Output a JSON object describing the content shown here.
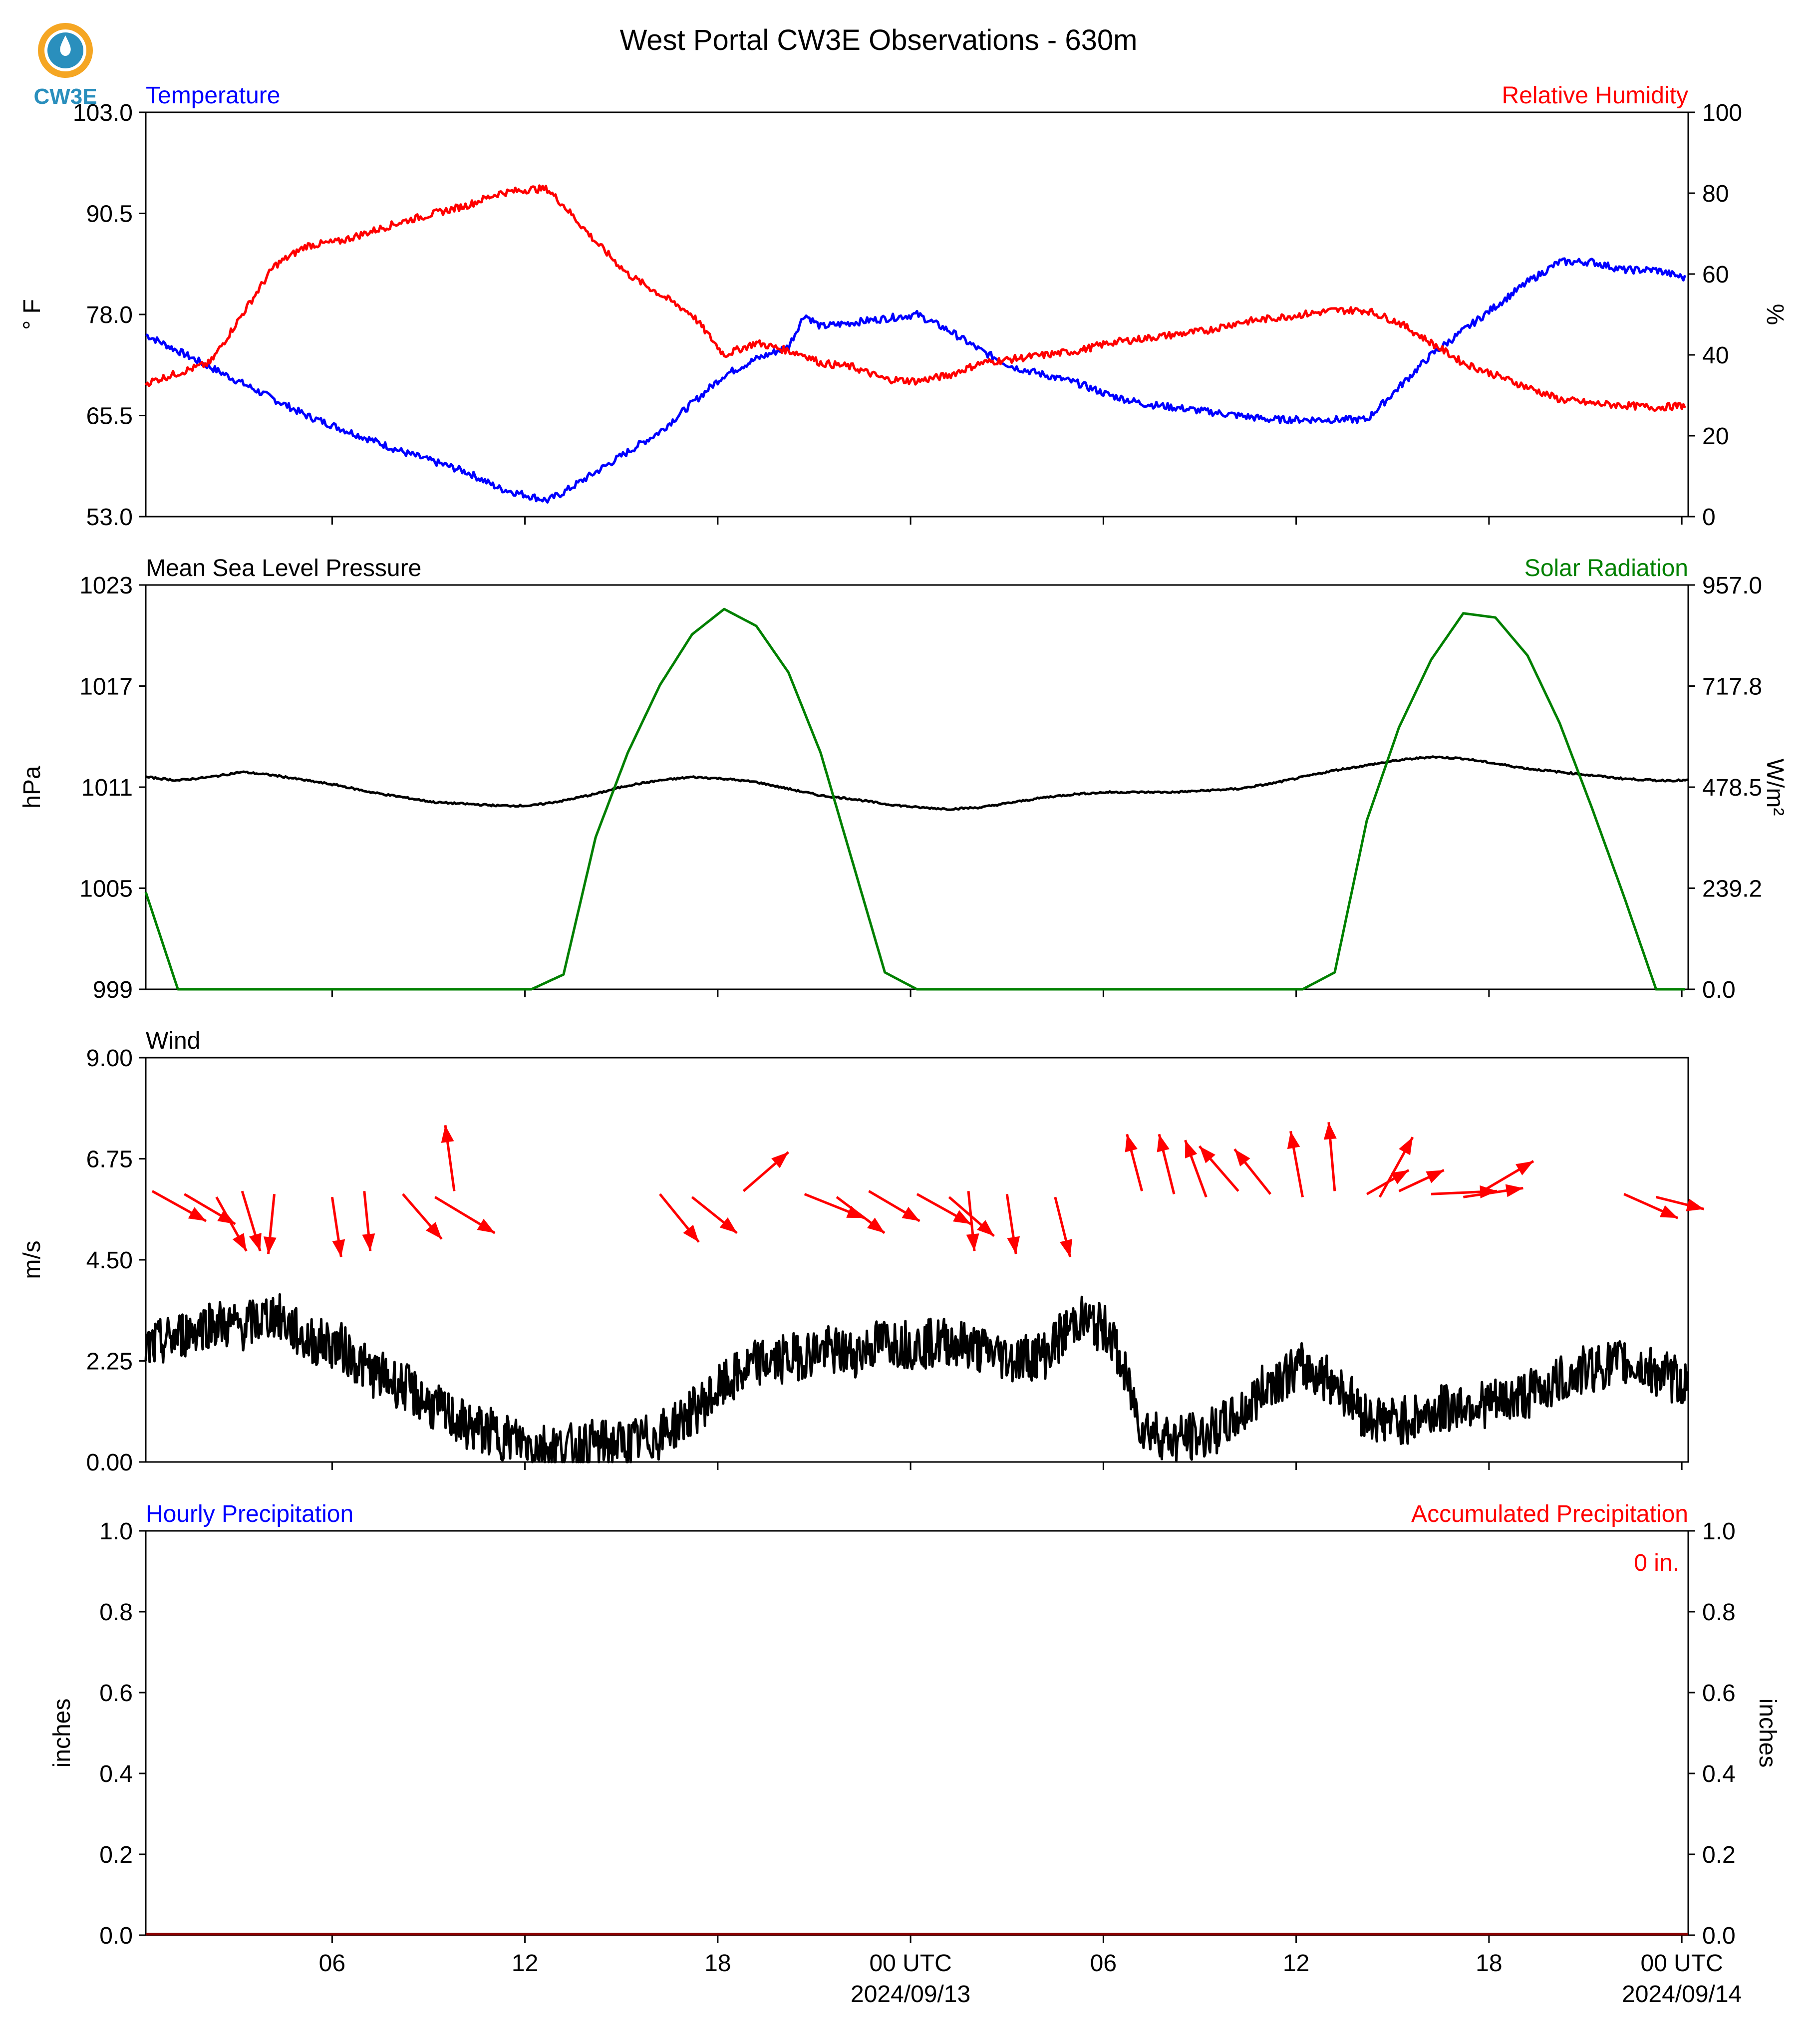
{
  "logo": {
    "text": "CW3E"
  },
  "title": "West Portal CW3E Observations - 630m",
  "colors": {
    "temperature": "#0000ff",
    "humidity": "#ff0000",
    "pressure": "#000000",
    "solar": "#008000",
    "wind": "#000000",
    "arrows": "#ff0000",
    "precip_accum": "#ff0000",
    "precip_hourly": "#0000ff",
    "logo_orange": "#f5a623",
    "logo_blue": "#2a8fbd"
  },
  "x_axis": {
    "tick_labels": [
      "06",
      "12",
      "18",
      "00 UTC",
      "06",
      "12",
      "18",
      "00 UTC"
    ],
    "date_labels": [
      "2024/09/13",
      "2024/09/14"
    ]
  },
  "chart_data": [
    {
      "type": "line",
      "panel": "temperature_humidity",
      "left_title": "Temperature",
      "right_title": "Relative Humidity",
      "left_ylabel": "° F",
      "right_ylabel": "%",
      "left_ylim": [
        53.0,
        103.0
      ],
      "right_ylim": [
        0,
        100
      ],
      "left_ticks": [
        "103.0",
        "90.5",
        "78.0",
        "65.5",
        "53.0"
      ],
      "right_ticks": [
        "100",
        "80",
        "60",
        "40",
        "20",
        "0"
      ],
      "x_hours": [
        0,
        2,
        4,
        5,
        6,
        8,
        10,
        11,
        12,
        12.5,
        13,
        14,
        15,
        16,
        17,
        18,
        19,
        20,
        20.5,
        21,
        22,
        23,
        24,
        25,
        26,
        27,
        28,
        29,
        30,
        31,
        32,
        33,
        34,
        35,
        36,
        37,
        38,
        39,
        40,
        41,
        42,
        43,
        44,
        45,
        46,
        47,
        47.9
      ],
      "series": [
        {
          "name": "Temperature",
          "values": [
            75.5,
            71.5,
            67.5,
            65.5,
            64.0,
            61.0,
            58.5,
            56.5,
            55.5,
            55.0,
            56.0,
            58.5,
            61.0,
            63.5,
            67.0,
            70.5,
            72.5,
            74.0,
            78.0,
            76.5,
            77.0,
            77.5,
            78.0,
            76.0,
            73.5,
            71.5,
            70.5,
            69.5,
            68.0,
            67.0,
            66.5,
            66.0,
            65.5,
            65.0,
            65.0,
            65.0,
            65.0,
            69.0,
            73.0,
            76.0,
            79.0,
            82.0,
            84.5,
            84.5,
            83.5,
            83.5,
            82.5
          ]
        },
        {
          "name": "Relative Humidity",
          "values": [
            33.0,
            38.0,
            62.0,
            67.0,
            68.0,
            73.0,
            77.0,
            80.0,
            81.0,
            81.0,
            77.0,
            68.0,
            60.0,
            55.0,
            50.0,
            40.0,
            43.0,
            41.0,
            40.0,
            38.0,
            37.0,
            34.0,
            33.5,
            35.0,
            38.0,
            39.0,
            40.0,
            41.0,
            43.0,
            44.0,
            45.0,
            46.0,
            48.0,
            49.0,
            50.0,
            51.0,
            51.0,
            48.0,
            43.0,
            38.0,
            35.0,
            32.0,
            29.0,
            28.0,
            27.5,
            27.0,
            27.5
          ]
        }
      ]
    },
    {
      "type": "line",
      "panel": "pressure_solar",
      "left_title": "Mean Sea Level Pressure",
      "right_title": "Solar Radiation",
      "left_ylabel": "hPa",
      "right_ylabel": "W/m²",
      "left_ylim": [
        999,
        1023
      ],
      "right_ylim": [
        0.0,
        957.0
      ],
      "left_ticks": [
        "1023",
        "1017",
        "1011",
        "1005",
        "999"
      ],
      "right_ticks": [
        "957.0",
        "717.8",
        "478.5",
        "239.2",
        "0.0"
      ],
      "x_hours": [
        0,
        1,
        2,
        3,
        4,
        5,
        6,
        7,
        8,
        9,
        10,
        11,
        12,
        13,
        14,
        15,
        16,
        17,
        18,
        19,
        20,
        21,
        22,
        23,
        24,
        25,
        26,
        27,
        28,
        29,
        30,
        31,
        32,
        33,
        34,
        35,
        36,
        37,
        38,
        39,
        40,
        41,
        42,
        43,
        44,
        45,
        46,
        47,
        48
      ],
      "series": [
        {
          "name": "Mean Sea Level Pressure",
          "values": [
            1011.6,
            1011.4,
            1011.6,
            1011.9,
            1011.7,
            1011.4,
            1011.1,
            1010.7,
            1010.4,
            1010.1,
            1010.0,
            1009.9,
            1009.9,
            1010.2,
            1010.6,
            1011.1,
            1011.4,
            1011.6,
            1011.5,
            1011.3,
            1010.9,
            1010.5,
            1010.3,
            1010.0,
            1009.8,
            1009.7,
            1009.8,
            1010.1,
            1010.4,
            1010.6,
            1010.7,
            1010.7,
            1010.7,
            1010.8,
            1010.9,
            1011.2,
            1011.6,
            1012.0,
            1012.3,
            1012.6,
            1012.8,
            1012.7,
            1012.4,
            1012.1,
            1011.9,
            1011.7,
            1011.5,
            1011.4,
            1011.4
          ]
        },
        {
          "name": "Solar Radiation",
          "values": [
            230,
            0,
            0,
            0,
            0,
            0,
            0,
            0,
            0,
            0,
            0,
            0,
            0,
            35,
            360,
            560,
            720,
            840,
            900,
            860,
            750,
            560,
            300,
            40,
            0,
            0,
            0,
            0,
            0,
            0,
            0,
            0,
            0,
            0,
            0,
            0,
            0,
            40,
            400,
            620,
            780,
            890,
            880,
            790,
            630,
            430,
            220,
            0,
            0
          ]
        }
      ]
    },
    {
      "type": "line",
      "panel": "wind",
      "left_title": "Wind",
      "left_ylabel": "m/s",
      "left_ylim": [
        0.0,
        9.0
      ],
      "left_ticks": [
        "9.00",
        "6.75",
        "4.50",
        "2.25",
        "0.00"
      ],
      "x_hours": [
        0,
        1,
        2,
        3,
        4,
        5,
        6,
        7,
        8,
        9,
        10,
        11,
        12,
        13,
        14,
        15,
        16,
        17,
        18,
        19,
        20,
        21,
        22,
        23,
        24,
        25,
        26,
        27,
        28,
        29,
        30,
        31,
        32,
        33,
        34,
        35,
        36,
        37,
        38,
        39,
        40,
        41,
        42,
        43,
        44,
        45,
        46,
        47,
        48
      ],
      "series": [
        {
          "name": "Wind speed",
          "values": [
            2.5,
            2.8,
            3.1,
            3.0,
            3.3,
            2.7,
            2.6,
            2.0,
            1.7,
            1.2,
            0.8,
            0.6,
            0.4,
            0.3,
            0.4,
            0.4,
            0.6,
            1.1,
            1.7,
            2.2,
            2.3,
            2.5,
            2.4,
            2.7,
            2.6,
            2.7,
            2.5,
            2.3,
            2.4,
            3.2,
            2.9,
            0.8,
            0.5,
            0.6,
            1.0,
            1.8,
            2.1,
            1.8,
            1.0,
            0.9,
            1.1,
            1.3,
            1.3,
            1.5,
            1.8,
            2.1,
            2.2,
            2.0,
            1.7
          ]
        }
      ],
      "wind_arrows": [
        {
          "hour": 0.2,
          "u": 1.8,
          "v": -1.0
        },
        {
          "hour": 1.2,
          "u": 1.7,
          "v": -1.0
        },
        {
          "hour": 2.2,
          "u": 1.0,
          "v": -1.8
        },
        {
          "hour": 3.0,
          "u": 0.6,
          "v": -2.0
        },
        {
          "hour": 4.0,
          "u": -0.2,
          "v": -2.0
        },
        {
          "hour": 5.8,
          "u": 0.3,
          "v": -2.0
        },
        {
          "hour": 6.8,
          "u": 0.2,
          "v": -2.0
        },
        {
          "hour": 8.0,
          "u": 1.3,
          "v": -1.5
        },
        {
          "hour": 9.0,
          "u": 2.0,
          "v": -1.2
        },
        {
          "hour": 9.6,
          "u": -0.3,
          "v": 2.2
        },
        {
          "hour": 16.0,
          "u": 1.3,
          "v": -1.6
        },
        {
          "hour": 17.0,
          "u": 1.5,
          "v": -1.2
        },
        {
          "hour": 18.6,
          "u": 1.5,
          "v": 1.3
        },
        {
          "hour": 20.5,
          "u": 2.0,
          "v": -0.8
        },
        {
          "hour": 21.5,
          "u": 1.6,
          "v": -1.2
        },
        {
          "hour": 22.5,
          "u": 1.7,
          "v": -1.0
        },
        {
          "hour": 24.0,
          "u": 1.8,
          "v": -1.0
        },
        {
          "hour": 25.0,
          "u": 1.5,
          "v": -1.3
        },
        {
          "hour": 25.6,
          "u": 0.2,
          "v": -2.0
        },
        {
          "hour": 26.8,
          "u": 0.3,
          "v": -2.0
        },
        {
          "hour": 28.3,
          "u": 0.5,
          "v": -2.0
        },
        {
          "hour": 31.0,
          "u": -0.5,
          "v": 1.9
        },
        {
          "hour": 32.0,
          "u": -0.5,
          "v": 2.0
        },
        {
          "hour": 33.0,
          "u": -0.7,
          "v": 1.9
        },
        {
          "hour": 34.0,
          "u": -1.3,
          "v": 1.5
        },
        {
          "hour": 35.0,
          "u": -1.2,
          "v": 1.5
        },
        {
          "hour": 36.0,
          "u": -0.4,
          "v": 2.2
        },
        {
          "hour": 37.0,
          "u": -0.2,
          "v": 2.3
        },
        {
          "hour": 38.0,
          "u": 1.4,
          "v": 0.8
        },
        {
          "hour": 38.4,
          "u": 1.1,
          "v": 2.0
        },
        {
          "hour": 39.0,
          "u": 1.5,
          "v": 0.7
        },
        {
          "hour": 40.0,
          "u": 2.2,
          "v": 0.1
        },
        {
          "hour": 41.0,
          "u": 2.0,
          "v": 0.3
        },
        {
          "hour": 41.6,
          "u": 1.7,
          "v": 1.0
        },
        {
          "hour": 46.0,
          "u": 1.8,
          "v": -0.8
        },
        {
          "hour": 47.0,
          "u": 1.6,
          "v": -0.4
        }
      ]
    },
    {
      "type": "line",
      "panel": "precipitation",
      "left_title": "Hourly Precipitation",
      "right_title": "Accumulated Precipitation",
      "left_ylabel": "inches",
      "right_ylabel": "inches",
      "left_ylim": [
        0.0,
        1.0
      ],
      "right_ylim": [
        0.0,
        1.0
      ],
      "left_ticks": [
        "1.0",
        "0.8",
        "0.6",
        "0.4",
        "0.2",
        "0.0"
      ],
      "right_ticks": [
        "1.0",
        "0.8",
        "0.6",
        "0.4",
        "0.2",
        "0.0"
      ],
      "total_label": "0 in.",
      "x_hours": [
        0,
        48
      ],
      "series": [
        {
          "name": "Hourly Precipitation",
          "values": [
            0,
            0
          ]
        },
        {
          "name": "Accumulated Precipitation",
          "values": [
            0,
            0
          ]
        }
      ]
    }
  ]
}
